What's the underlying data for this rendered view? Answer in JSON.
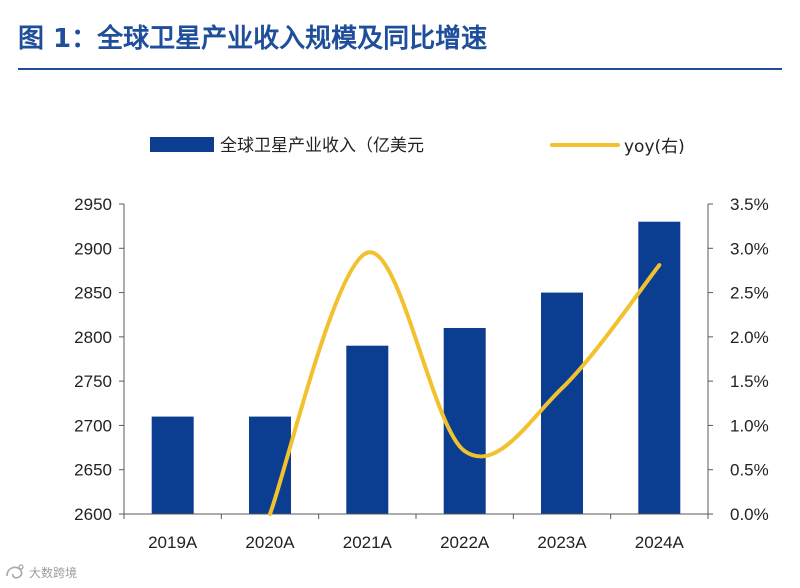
{
  "figure_title": "图 1：全球卫星产业收入规模及同比增速",
  "watermark": "大数跨境",
  "chart_data": {
    "type": "bar",
    "categories": [
      "2019A",
      "2020A",
      "2021A",
      "2022A",
      "2023A",
      "2024A"
    ],
    "series": [
      {
        "name": "全球卫星产业收入（亿美元",
        "type": "bar",
        "axis": "left",
        "color": "#0b3d91",
        "values": [
          2710,
          2710,
          2790,
          2810,
          2850,
          2930
        ]
      },
      {
        "name": "yoy(右)",
        "type": "line",
        "axis": "right",
        "color": "#f2c12e",
        "smooth": true,
        "values": [
          null,
          0.0,
          2.95,
          0.71,
          1.42,
          2.81
        ]
      }
    ],
    "y_left": {
      "min": 2600,
      "max": 2950,
      "ticks": [
        2600,
        2650,
        2700,
        2750,
        2800,
        2850,
        2900,
        2950
      ],
      "tick_labels": [
        "2600",
        "2650",
        "2700",
        "2750",
        "2800",
        "2850",
        "2900",
        "2950"
      ]
    },
    "y_right": {
      "min": 0,
      "max": 3.5,
      "ticks": [
        0,
        0.5,
        1.0,
        1.5,
        2.0,
        2.5,
        3.0,
        3.5
      ],
      "tick_labels": [
        "0.0%",
        "0.5%",
        "1.0%",
        "1.5%",
        "2.0%",
        "2.5%",
        "3.0%",
        "3.5%"
      ]
    },
    "legend_position": "top",
    "grid": false
  }
}
